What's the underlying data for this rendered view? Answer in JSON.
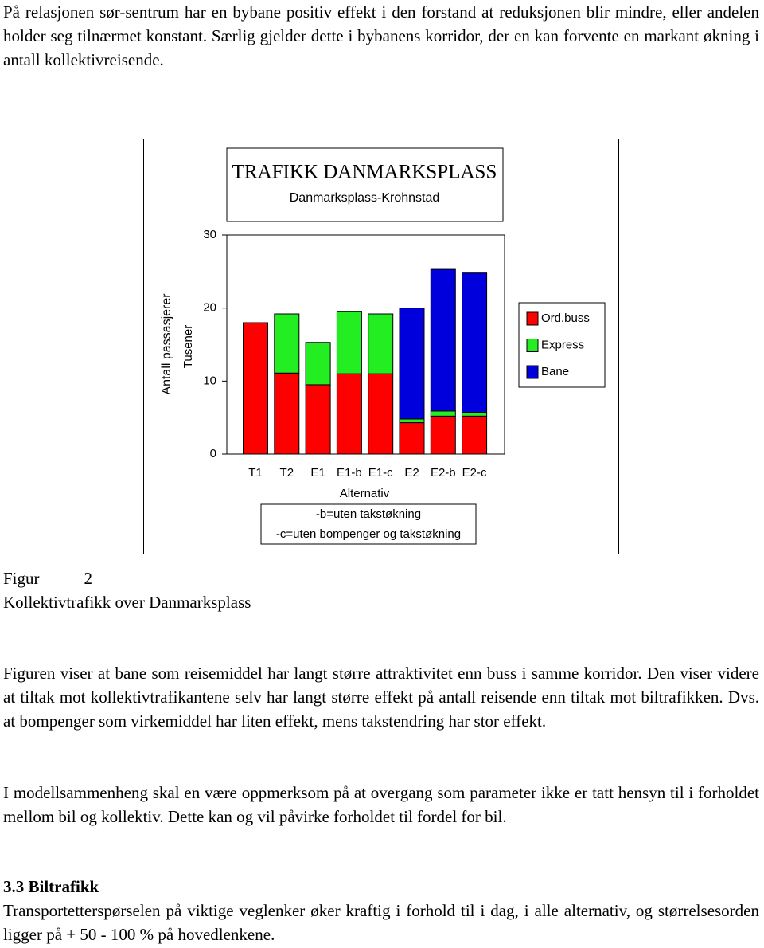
{
  "paragraphs": [
    "På relasjonen sør-sentrum har en bybane positiv effekt i den forstand at reduksjonen blir mindre, eller andelen holder seg tilnærmet konstant.  Særlig gjelder dette i bybanens korridor, der en kan forvente en markant økning i antall kollektivreisende.",
    "Figuren viser at bane som reisemiddel har langt større attraktivitet enn buss i samme korridor. Den viser videre at tiltak mot kollektivtrafikantene selv har langt større effekt på antall reisende enn tiltak mot biltrafikken.  Dvs. at bompenger som virkemiddel har liten effekt, mens takstendring har stor effekt.",
    "I modellsammenheng skal en være oppmerksom på at overgang som parameter ikke er tatt hensyn til i forholdet mellom bil og kollektiv.  Dette kan og vil påvirke forholdet til fordel for bil."
  ],
  "figure": {
    "label": "Figur",
    "number": 2,
    "caption": "Kollektivtrafikk over Danmarksplass"
  },
  "section": {
    "heading": "3.3 Biltrafikk",
    "paragraph": "Transportetterspørselen på viktige veglenker øker kraftig i forhold til i dag, i alle alternativ, og størrelsesorden ligger på + 50 - 100 % på hovedlenkene."
  },
  "chart_data": {
    "type": "bar",
    "stacked": true,
    "title": "TRAFIKK DANMARKSPLASS",
    "subtitle": "Danmarksplass-Krohnstad",
    "y_label": "Antall passasjerer",
    "y_unit_label": "Tusener",
    "x_label": "Alternativ",
    "note": [
      "-b=uten takstøkning",
      "-c=uten bompenger og takstøkning"
    ],
    "categories": [
      "T1",
      "T2",
      "E1",
      "E1-b",
      "E1-c",
      "E2",
      "E2-b",
      "E2-c"
    ],
    "series": [
      {
        "name": "Ord.buss",
        "color": "#ff0000",
        "values": [
          18,
          11.1,
          9.5,
          11,
          11,
          4.3,
          5.2,
          5.2
        ]
      },
      {
        "name": "Express",
        "color": "#22ee22",
        "values": [
          0,
          8.1,
          5.8,
          8.5,
          8.2,
          0.5,
          0.7,
          0.5
        ]
      },
      {
        "name": "Bane",
        "color": "#0000dd",
        "values": [
          0,
          0,
          0,
          0,
          0,
          15.2,
          19.4,
          19.1
        ]
      }
    ],
    "ylim": [
      0,
      30
    ],
    "yticks": [
      0,
      10,
      20,
      30
    ],
    "grid": false,
    "legend": "right"
  }
}
